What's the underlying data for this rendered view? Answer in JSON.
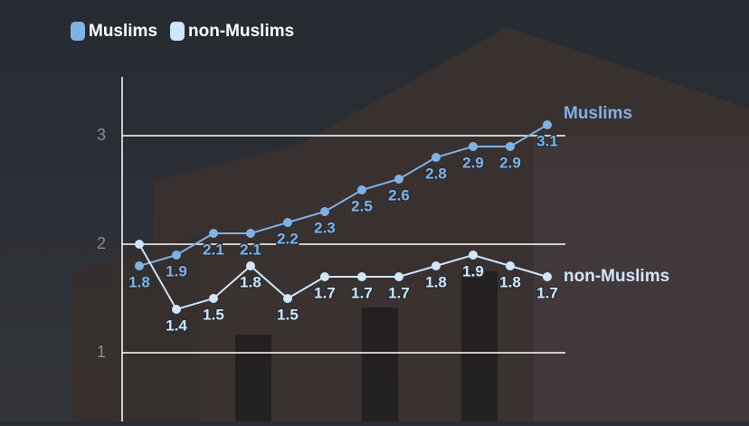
{
  "chart_data": {
    "type": "line",
    "series": [
      {
        "name": "Muslims",
        "color": "#7fb2e5",
        "values": [
          1.8,
          1.9,
          2.1,
          2.1,
          2.2,
          2.3,
          2.5,
          2.6,
          2.8,
          2.9,
          2.9,
          3.1
        ]
      },
      {
        "name": "non-Muslims",
        "color": "#cfe6fb",
        "values": [
          2.0,
          1.4,
          1.5,
          1.8,
          1.5,
          1.7,
          1.7,
          1.7,
          1.8,
          1.9,
          1.8,
          1.7
        ],
        "value_labels": [
          null,
          "1.4",
          "1.5",
          "1.8",
          "1.5",
          "1.7",
          "1.7",
          "1.7",
          "1.8",
          "1.9",
          "1.8",
          "1.7"
        ]
      }
    ],
    "ylim": [
      0.4,
      3.5
    ],
    "yticks": [
      1,
      2,
      3
    ],
    "grid": true,
    "legend": "top-left"
  }
}
